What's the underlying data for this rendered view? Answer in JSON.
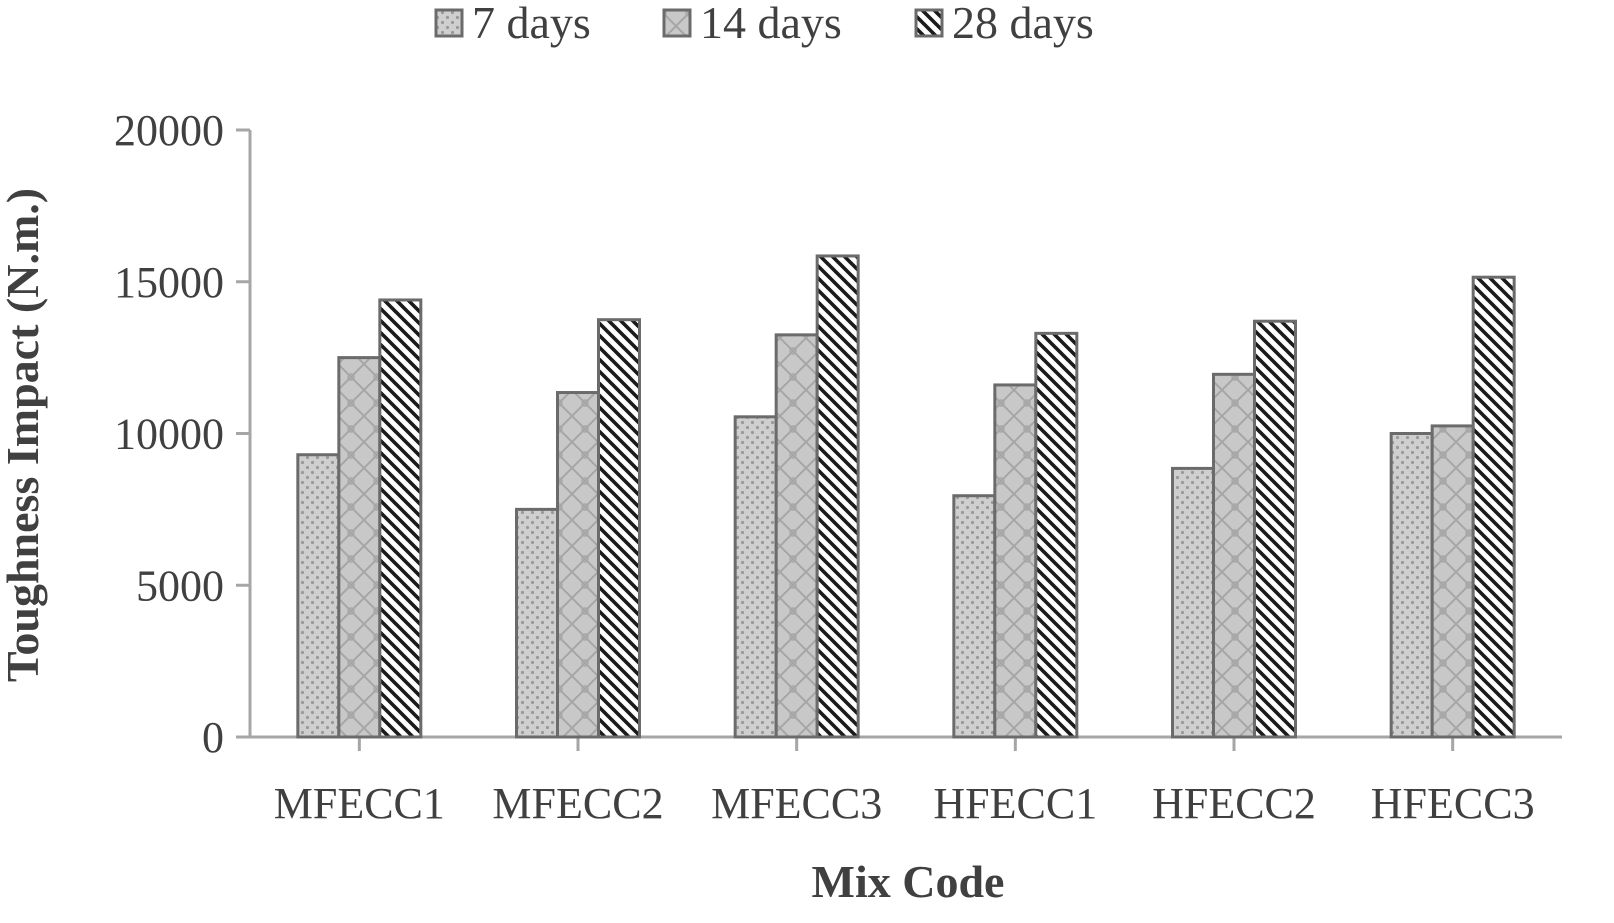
{
  "chart_data": {
    "type": "bar",
    "title": "",
    "xlabel": "Mix Code",
    "ylabel": "Toughness Impact (N.m.)",
    "categories": [
      "MFECC1",
      "MFECC2",
      "MFECC3",
      "HFECC1",
      "HFECC2",
      "HFECC3"
    ],
    "series": [
      {
        "name": "7 days",
        "values": [
          9300,
          7500,
          10550,
          7950,
          8850,
          10000
        ]
      },
      {
        "name": "14 days",
        "values": [
          12500,
          11350,
          13250,
          11600,
          11950,
          10250
        ]
      },
      {
        "name": "28 days",
        "values": [
          14400,
          13750,
          15850,
          13300,
          13700,
          15150
        ]
      }
    ],
    "ylim": [
      0,
      20000
    ],
    "yticks": [
      0,
      5000,
      10000,
      15000,
      20000
    ],
    "grid": false,
    "legend_position": "top-center"
  }
}
